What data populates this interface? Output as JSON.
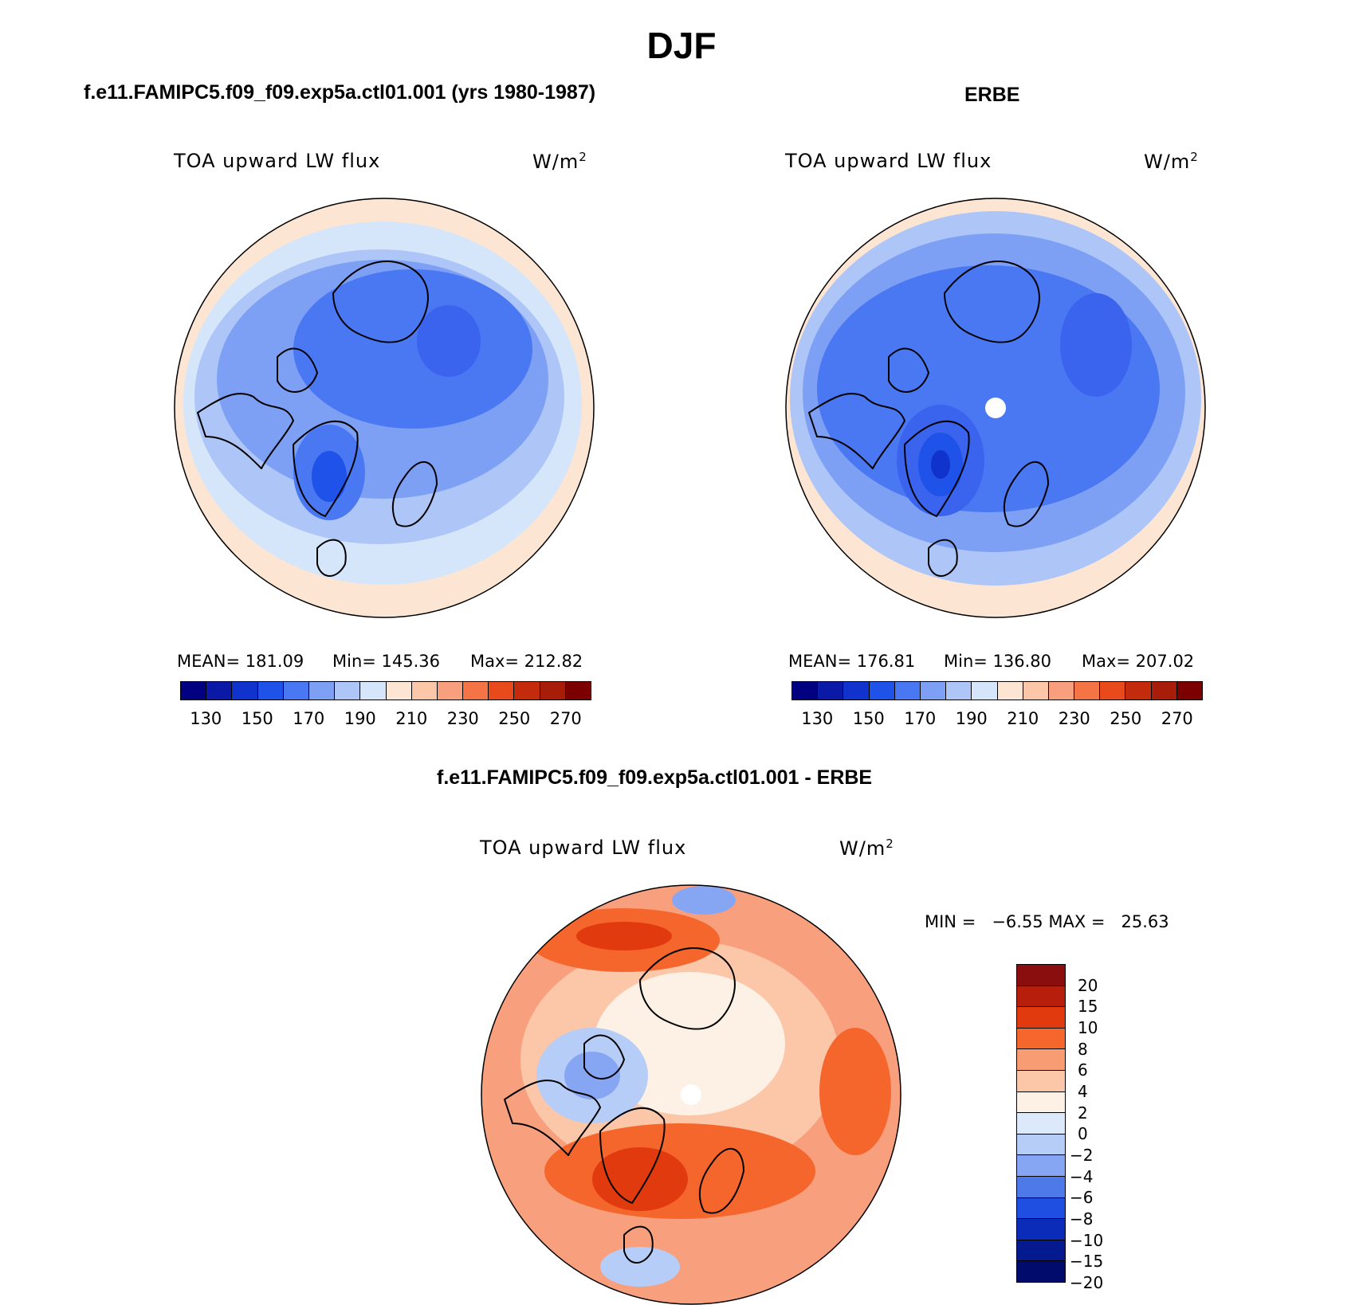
{
  "figure": {
    "title": "DJF"
  },
  "panels": {
    "model": {
      "heading": "f.e11.FAMIPC5.f09_f09.exp5a.ctl01.001 (yrs 1980-1987)",
      "variable": "TOA upward LW flux",
      "units": "W/m",
      "units_exp": "2",
      "mean": "MEAN= 181.09",
      "min": "Min= 145.36",
      "max": "Max= 212.82"
    },
    "obs": {
      "heading": "ERBE",
      "variable": "TOA upward LW flux",
      "units": "W/m",
      "units_exp": "2",
      "mean": "MEAN= 176.81",
      "min": "Min= 136.80",
      "max": "Max= 207.02"
    },
    "diff": {
      "heading": "f.e11.FAMIPC5.f09_f09.exp5a.ctl01.001 - ERBE",
      "variable": "TOA upward LW flux",
      "units": "W/m",
      "units_exp": "2",
      "minmax": "MIN =   −6.55 MAX =   25.63"
    }
  },
  "colorbars": {
    "absolute": {
      "colors": [
        "#000080",
        "#0a1aa6",
        "#0f33cc",
        "#1f52e8",
        "#4a78f2",
        "#7da0f5",
        "#adc6f7",
        "#d6e6fa",
        "#fde5d4",
        "#fcc7a9",
        "#f8a07e",
        "#f57446",
        "#e84a1c",
        "#c42b0c",
        "#a81c0a",
        "#7d0000"
      ],
      "labels": [
        "130",
        "150",
        "170",
        "190",
        "210",
        "230",
        "250",
        "270"
      ]
    },
    "difference": {
      "colors_top_to_bottom": [
        "#8a0e0e",
        "#b81e0c",
        "#e03a0e",
        "#f5662d",
        "#f89c73",
        "#fbc7a8",
        "#fdf0e4",
        "#dce9fa",
        "#b6cdf7",
        "#86a6f4",
        "#4d7ae8",
        "#1f4fe0",
        "#0b2cb8",
        "#061a90",
        "#000b6c"
      ],
      "labels": [
        "20",
        "15",
        "10",
        "8",
        "6",
        "4",
        "2",
        "0",
        "−2",
        "−4",
        "−6",
        "−8",
        "−10",
        "−15",
        "−20"
      ]
    }
  },
  "maps": {
    "model": {
      "rings": [
        "#fde5d4",
        "#d6e6fa",
        "#adc6f7",
        "#7da0f5",
        "#4a78f2"
      ],
      "pole_dot": false
    },
    "obs": {
      "rings": [
        "#fde5d4",
        "#adc6f7",
        "#7da0f5",
        "#4a78f2",
        "#3a64ee"
      ],
      "pole_dot": true
    },
    "diff": {
      "base": "#f8a07e",
      "pole_dot": true
    }
  }
}
